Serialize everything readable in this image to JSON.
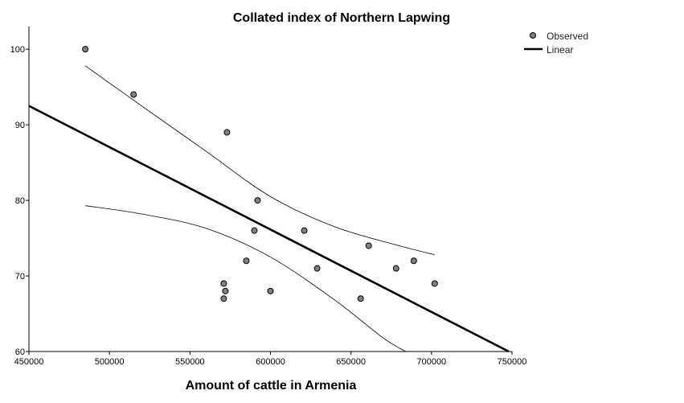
{
  "chart_data": {
    "type": "scatter",
    "title": "Collated index of Northern Lapwing",
    "xlabel": "Amount of cattle in Armenia",
    "ylabel": "",
    "xlim": [
      450000,
      750000
    ],
    "ylim": [
      60,
      103
    ],
    "x_ticks": [
      450000,
      500000,
      550000,
      600000,
      650000,
      700000,
      750000
    ],
    "y_ticks": [
      60,
      70,
      80,
      90,
      100
    ],
    "grid": false,
    "legend_position": "top-right",
    "colors": {
      "points": "#808080",
      "point_stroke": "#000000",
      "fit_line": "#000000",
      "ci_line": "#000000"
    },
    "series": [
      {
        "name": "Observed",
        "kind": "scatter",
        "points": [
          [
            485000,
            100
          ],
          [
            515000,
            94
          ],
          [
            573000,
            89
          ],
          [
            592000,
            80
          ],
          [
            590000,
            76
          ],
          [
            621000,
            76
          ],
          [
            585000,
            72
          ],
          [
            629000,
            71
          ],
          [
            571000,
            69
          ],
          [
            572000,
            68
          ],
          [
            571000,
            67
          ],
          [
            600000,
            68
          ],
          [
            661000,
            74
          ],
          [
            678000,
            71
          ],
          [
            689000,
            72
          ],
          [
            702000,
            69
          ],
          [
            656000,
            67
          ]
        ]
      },
      {
        "name": "Linear",
        "kind": "line",
        "points": [
          [
            450000,
            92.5
          ],
          [
            748000,
            60
          ]
        ]
      }
    ],
    "confidence_band": {
      "upper": [
        [
          485000,
          97.8
        ],
        [
          520000,
          92.5
        ],
        [
          560000,
          86.5
        ],
        [
          600000,
          80.5
        ],
        [
          640000,
          76.5
        ],
        [
          680000,
          74.0
        ],
        [
          702000,
          72.8
        ]
      ],
      "lower": [
        [
          485000,
          79.3
        ],
        [
          520000,
          78.2
        ],
        [
          560000,
          76.3
        ],
        [
          600000,
          72.5
        ],
        [
          640000,
          66.8
        ],
        [
          670000,
          61.8
        ],
        [
          684000,
          60
        ]
      ]
    }
  }
}
